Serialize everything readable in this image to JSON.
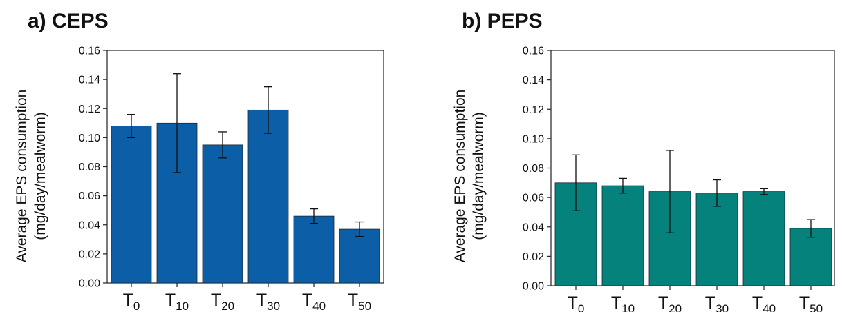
{
  "chart_data": [
    {
      "type": "bar",
      "title": "a) CEPS",
      "ylabel_lines": [
        "Average EPS consumption",
        "(mg/day/mealworm)"
      ],
      "categories": [
        {
          "main": "T",
          "sub": "0"
        },
        {
          "main": "T",
          "sub": "10"
        },
        {
          "main": "T",
          "sub": "20"
        },
        {
          "main": "T",
          "sub": "30"
        },
        {
          "main": "T",
          "sub": "40"
        },
        {
          "main": "T",
          "sub": "50"
        }
      ],
      "values": [
        0.108,
        0.11,
        0.095,
        0.119,
        0.046,
        0.037
      ],
      "errors": [
        0.008,
        0.034,
        0.009,
        0.016,
        0.005,
        0.005
      ],
      "ylim": [
        0,
        0.16
      ],
      "yticks": [
        "0.00",
        "0.02",
        "0.04",
        "0.06",
        "0.08",
        "0.10",
        "0.12",
        "0.14",
        "0.16"
      ],
      "bar_color": "#0c5fa6",
      "grid": false,
      "legend": "none"
    },
    {
      "type": "bar",
      "title": "b) PEPS",
      "ylabel_lines": [
        "Average EPS consumption",
        "(mg/day/mealworm)"
      ],
      "categories": [
        {
          "main": "T",
          "sub": "0"
        },
        {
          "main": "T",
          "sub": "10"
        },
        {
          "main": "T",
          "sub": "20"
        },
        {
          "main": "T",
          "sub": "30"
        },
        {
          "main": "T",
          "sub": "40"
        },
        {
          "main": "T",
          "sub": "50"
        }
      ],
      "values": [
        0.07,
        0.068,
        0.064,
        0.063,
        0.064,
        0.039
      ],
      "errors": [
        0.019,
        0.005,
        0.028,
        0.009,
        0.002,
        0.006
      ],
      "ylim": [
        0,
        0.16
      ],
      "yticks": [
        "0.00",
        "0.02",
        "0.04",
        "0.06",
        "0.08",
        "0.10",
        "0.12",
        "0.14",
        "0.16"
      ],
      "bar_color": "#05827c",
      "grid": false,
      "legend": "none"
    }
  ]
}
